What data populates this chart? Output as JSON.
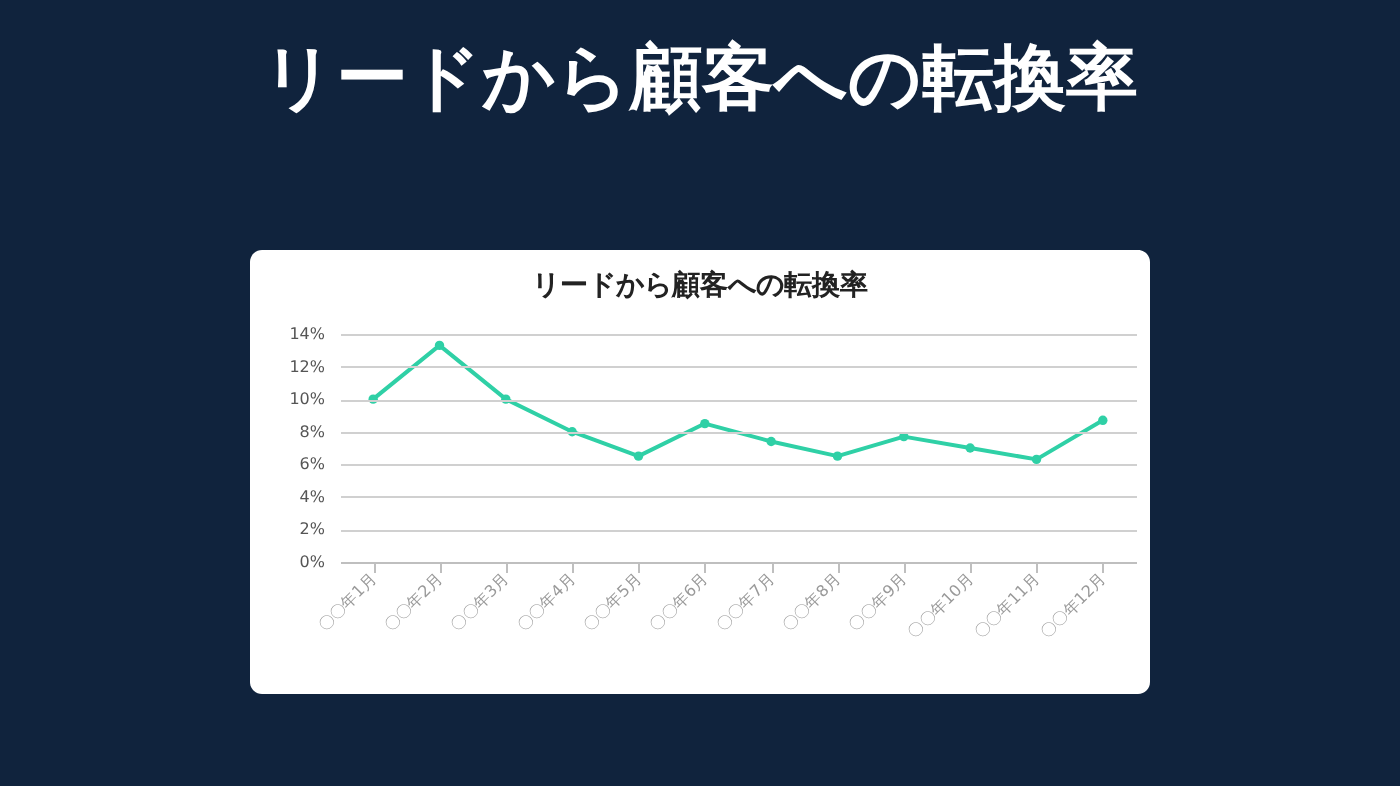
{
  "chart_data": {
    "type": "line",
    "title": "リードから顧客への転換率",
    "subtitle": "リードから顧客への転換率",
    "categories": [
      "〇〇年1月",
      "〇〇年2月",
      "〇〇年3月",
      "〇〇年4月",
      "〇〇年5月",
      "〇〇年6月",
      "〇〇年7月",
      "〇〇年8月",
      "〇〇年9月",
      "〇〇年10月",
      "〇〇年11月",
      "〇〇年12月"
    ],
    "series": [
      {
        "color": "#2fd0a6",
        "values": [
          10,
          13.3,
          10,
          8,
          6.5,
          8.5,
          7.4,
          6.5,
          7.7,
          7.0,
          6.3,
          8.7
        ]
      }
    ],
    "ylim": [
      0,
      14
    ],
    "yticks": [
      {
        "value": 0,
        "label": "0%"
      },
      {
        "value": 2,
        "label": "2%"
      },
      {
        "value": 4,
        "label": "4%"
      },
      {
        "value": 6,
        "label": "6%"
      },
      {
        "value": 8,
        "label": "8%"
      },
      {
        "value": 10,
        "label": "10%"
      },
      {
        "value": 12,
        "label": "12%"
      },
      {
        "value": 14,
        "label": "14%"
      }
    ],
    "grid": "y",
    "marker": "circle",
    "line_style": "solid"
  }
}
